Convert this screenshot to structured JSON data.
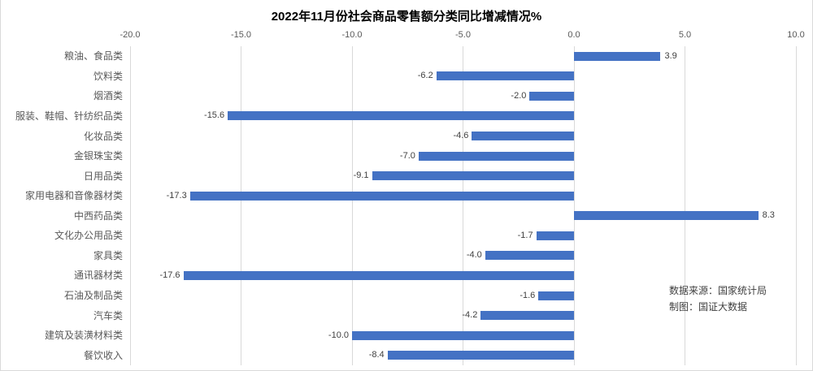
{
  "title": "2022年11月份社会商品零售额分类同比增减情况%",
  "source_note": {
    "line1": "数据来源：国家统计局",
    "line2": "制图：国证大数据"
  },
  "chart_data": {
    "type": "bar",
    "orientation": "horizontal",
    "title": "2022年11月份社会商品零售额分类同比增减情况%",
    "categories": [
      "粮油、食品类",
      "饮料类",
      "烟酒类",
      "服装、鞋帽、针纺织品类",
      "化妆品类",
      "金银珠宝类",
      "日用品类",
      "家用电器和音像器材类",
      "中西药品类",
      "文化办公用品类",
      "家具类",
      "通讯器材类",
      "石油及制品类",
      "汽车类",
      "建筑及装潢材料类",
      "餐饮收入"
    ],
    "values": [
      3.9,
      -6.2,
      -2.0,
      -15.6,
      -4.6,
      -7.0,
      -9.1,
      -17.3,
      8.3,
      -1.7,
      -4.0,
      -17.6,
      -1.6,
      -4.2,
      -10.0,
      -8.4
    ],
    "x_ticks": [
      -20.0,
      -15.0,
      -10.0,
      -5.0,
      0.0,
      5.0,
      10.0
    ],
    "xlim": [
      -20,
      10
    ],
    "axis_position": "top",
    "grid": true,
    "value_labels": "outside-end",
    "bar_color": "#4472C4",
    "gridline_color": "#D9D9D9",
    "tick_label_color": "#595959",
    "category_label_color": "#595959",
    "value_label_color": "#404040"
  }
}
